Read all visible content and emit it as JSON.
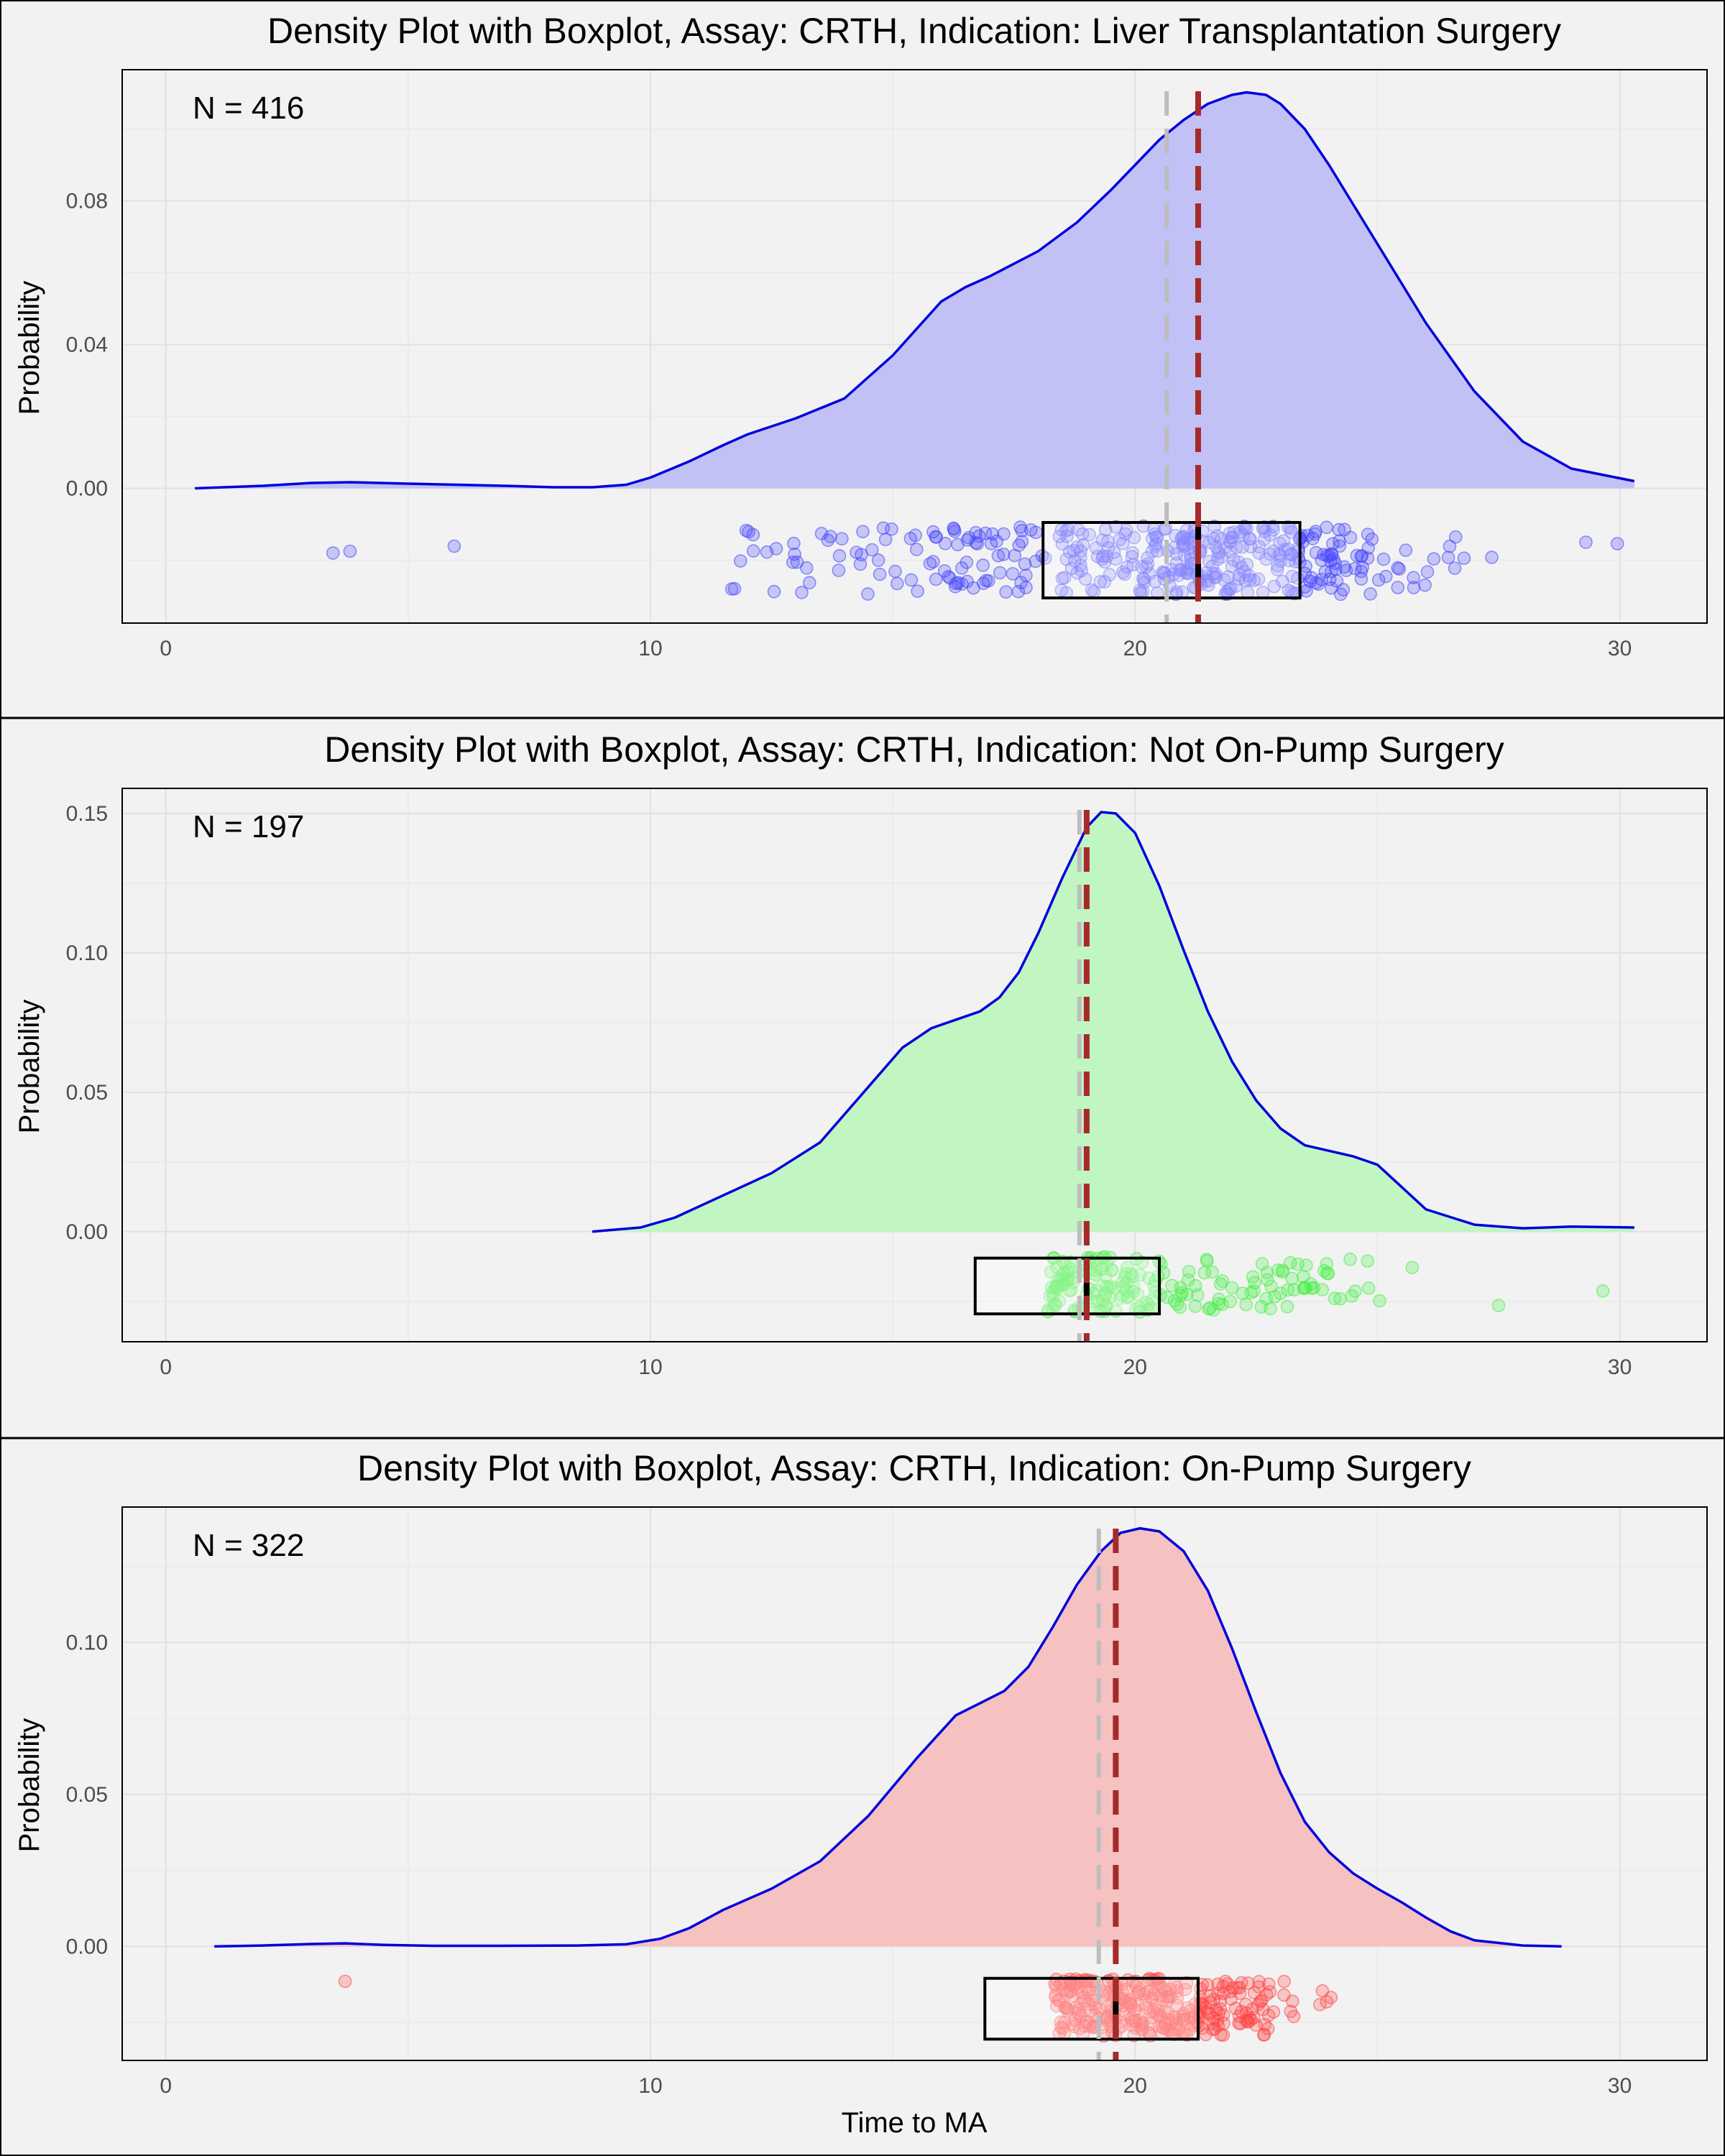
{
  "chart_data": [
    {
      "type": "density",
      "title": "Density Plot with Boxplot, Assay: CRTH, Indication: Liver Transplantation Surgery",
      "annotation": "N = 416",
      "xlabel": "",
      "ylabel": "Probability",
      "xlim": [
        -0.9,
        31.8
      ],
      "ylim": [
        -0.0375,
        0.1165
      ],
      "x_ticks": [
        0,
        10,
        20,
        30
      ],
      "y_ticks": [
        0.0,
        0.04,
        0.08
      ],
      "y_tick_labels": [
        "0.00",
        "0.04",
        "0.08"
      ],
      "fill_color": "#c1c1f5",
      "line_color": "#0000dd",
      "point_color": "#4444ff",
      "density": {
        "x": [
          0.6,
          2,
          3,
          3.8,
          5,
          6,
          7,
          8,
          8.8,
          9.5,
          10,
          10.8,
          11.5,
          12,
          13,
          14,
          15,
          16,
          16.5,
          17,
          18,
          18.8,
          19.5,
          20,
          20.5,
          21,
          21.5,
          22,
          22.3,
          22.7,
          23,
          23.5,
          24,
          24.5,
          25,
          25.5,
          26,
          27,
          28,
          29,
          30.3
        ],
        "y": [
          0,
          0.0007,
          0.0015,
          0.0017,
          0.0013,
          0.001,
          0.0007,
          0.0003,
          0.0003,
          0.001,
          0.003,
          0.0075,
          0.012,
          0.015,
          0.0195,
          0.025,
          0.037,
          0.052,
          0.056,
          0.059,
          0.066,
          0.074,
          0.083,
          0.09,
          0.097,
          0.1025,
          0.107,
          0.1095,
          0.1102,
          0.1095,
          0.107,
          0.1,
          0.09,
          0.079,
          0.068,
          0.057,
          0.046,
          0.027,
          0.013,
          0.0055,
          0.002
        ]
      },
      "box": {
        "q1": 18.1,
        "median": 21.3,
        "q3": 23.4,
        "band_top": -0.0095,
        "band_bottom": -0.0305
      },
      "mean": 20.65,
      "median_line": 21.3,
      "n": 416,
      "x_range": [
        3.4,
        30.0
      ],
      "point_y_range": [
        -0.0105,
        -0.0295
      ],
      "seed": 416,
      "outliers": [
        {
          "x": 3.45,
          "y": -0.018
        },
        {
          "x": 3.8,
          "y": -0.0175
        },
        {
          "x": 5.95,
          "y": -0.0161
        },
        {
          "x": 29.3,
          "y": -0.015
        },
        {
          "x": 29.95,
          "y": -0.0154
        }
      ],
      "point_clusters": [
        {
          "center": 22.5,
          "spread": 2.8,
          "weight": 0.7
        },
        {
          "center": 16.5,
          "spread": 3.0,
          "weight": 0.3
        }
      ]
    },
    {
      "type": "density",
      "title": "Density Plot with Boxplot, Assay: CRTH, Indication: Not On-Pump Surgery",
      "annotation": "N = 197",
      "xlabel": "",
      "ylabel": "Probability",
      "xlim": [
        -0.9,
        31.8
      ],
      "ylim": [
        -0.0395,
        0.159
      ],
      "x_ticks": [
        0,
        10,
        20,
        30
      ],
      "y_ticks": [
        0.0,
        0.05,
        0.1,
        0.15
      ],
      "y_tick_labels": [
        "0.00",
        "0.05",
        "0.10",
        "0.15"
      ],
      "fill_color": "#c1f5c1",
      "line_color": "#0000dd",
      "point_color": "#44ee44",
      "density": {
        "x": [
          8.8,
          9.8,
          10.5,
          11.5,
          12.5,
          13.5,
          14.5,
          15.2,
          15.8,
          16.3,
          16.8,
          17.2,
          17.6,
          18,
          18.5,
          19,
          19.3,
          19.6,
          20,
          20.5,
          21,
          21.5,
          22,
          22.5,
          23,
          23.5,
          24,
          24.5,
          25,
          25.5,
          26,
          27,
          28,
          29,
          30.3
        ],
        "y": [
          0,
          0.0015,
          0.005,
          0.013,
          0.021,
          0.032,
          0.052,
          0.066,
          0.073,
          0.076,
          0.079,
          0.084,
          0.093,
          0.107,
          0.127,
          0.145,
          0.1505,
          0.15,
          0.143,
          0.124,
          0.101,
          0.079,
          0.061,
          0.047,
          0.037,
          0.031,
          0.029,
          0.027,
          0.024,
          0.016,
          0.008,
          0.0025,
          0.0012,
          0.0018,
          0.0015
        ]
      },
      "box": {
        "q1": 16.7,
        "median": 19.0,
        "q3": 20.5,
        "band_top": -0.0095,
        "band_bottom": -0.0295
      },
      "mean": 18.85,
      "median_line": 19.0,
      "n": 197,
      "x_range": [
        11.2,
        29.7
      ],
      "point_y_range": [
        -0.009,
        -0.029
      ],
      "seed": 197,
      "outliers": [
        {
          "x": 27.5,
          "y": -0.0265
        },
        {
          "x": 29.65,
          "y": -0.0213
        }
      ],
      "point_clusters": [
        {
          "center": 18.5,
          "spread": 2.6,
          "weight": 0.75
        },
        {
          "center": 23.5,
          "spread": 1.5,
          "weight": 0.25
        }
      ]
    },
    {
      "type": "density",
      "title": "Density Plot with Boxplot, Assay: CRTH, Indication: On-Pump Surgery",
      "annotation": "N = 322",
      "xlabel": "Time to MA",
      "ylabel": "Probability",
      "xlim": [
        -0.9,
        31.8
      ],
      "ylim": [
        -0.0375,
        0.1445
      ],
      "x_ticks": [
        0,
        10,
        20,
        30
      ],
      "y_ticks": [
        0.0,
        0.05,
        0.1
      ],
      "y_tick_labels": [
        "0.00",
        "0.05",
        "0.10"
      ],
      "fill_color": "#f5c1c1",
      "line_color": "#0000dd",
      "point_color": "#ff4444",
      "density": {
        "x": [
          1,
          2,
          3,
          3.7,
          4.5,
          5.5,
          7,
          8.5,
          9.5,
          10.2,
          10.8,
          11.5,
          12.5,
          13.5,
          14.5,
          15.5,
          16.3,
          16.8,
          17.3,
          17.8,
          18.3,
          18.8,
          19.3,
          19.7,
          20.1,
          20.5,
          21,
          21.5,
          22,
          22.5,
          23,
          23.5,
          24,
          24.5,
          25,
          25.5,
          26,
          26.5,
          27,
          28,
          28.8
        ],
        "y": [
          0,
          0.0003,
          0.0008,
          0.001,
          0.0005,
          0.0002,
          0.0002,
          0.0003,
          0.0007,
          0.0025,
          0.006,
          0.012,
          0.019,
          0.028,
          0.043,
          0.062,
          0.076,
          0.08,
          0.084,
          0.092,
          0.105,
          0.119,
          0.13,
          0.136,
          0.1375,
          0.1365,
          0.13,
          0.117,
          0.098,
          0.077,
          0.057,
          0.041,
          0.031,
          0.024,
          0.019,
          0.0145,
          0.0095,
          0.005,
          0.002,
          0.0003,
          0
        ]
      },
      "box": {
        "q1": 16.9,
        "median": 19.6,
        "q3": 21.3,
        "band_top": -0.0105,
        "band_bottom": -0.0305
      },
      "mean": 19.25,
      "median_line": 19.6,
      "n": 322,
      "x_range": [
        11.3,
        26.3
      ],
      "point_y_range": [
        -0.0105,
        -0.0295
      ],
      "seed": 322,
      "outliers": [
        {
          "x": 3.7,
          "y": -0.0115
        }
      ],
      "point_clusters": [
        {
          "center": 19.5,
          "spread": 2.7,
          "weight": 1.0
        }
      ]
    }
  ]
}
